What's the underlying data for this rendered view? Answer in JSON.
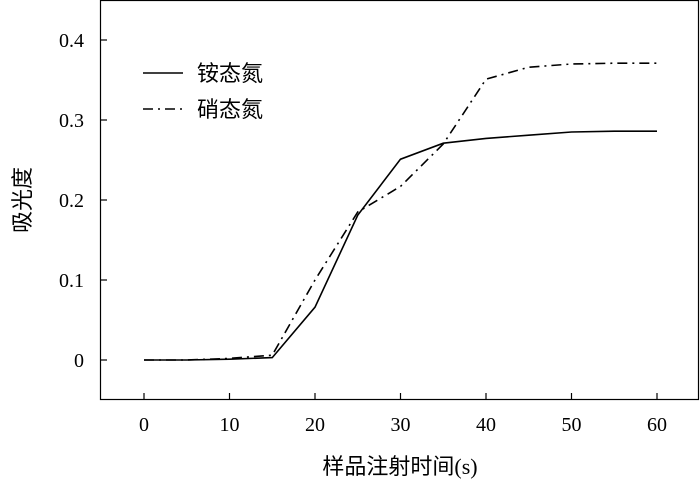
{
  "chart_data": {
    "type": "line",
    "title": "",
    "xlabel": "样品注射时间(s)",
    "ylabel": "吸光度",
    "xlim": [
      -10,
      65
    ],
    "ylim": [
      -0.05,
      0.45
    ],
    "xticks": [
      0,
      10,
      20,
      30,
      40,
      50,
      60
    ],
    "yticks": [
      0,
      0.1,
      0.2,
      0.3,
      0.4
    ],
    "xtick_labels": [
      "0",
      "10",
      "20",
      "30",
      "40",
      "50",
      "60"
    ],
    "ytick_labels": [
      "0",
      "0.1",
      "0.2",
      "0.3",
      "0.4"
    ],
    "grid": false,
    "legend_position": "top-left",
    "x": [
      0,
      5,
      10,
      15,
      20,
      25,
      30,
      35,
      40,
      45,
      50,
      55,
      60
    ],
    "series": [
      {
        "name": "铵态氮",
        "style": "solid",
        "color": "#000000",
        "values": [
          0,
          0,
          0.001,
          0.003,
          0.066,
          0.181,
          0.251,
          0.271,
          0.277,
          0.281,
          0.285,
          0.286,
          0.286
        ]
      },
      {
        "name": "硝态氮",
        "style": "dashdot",
        "color": "#000000",
        "values": [
          0,
          0,
          0.002,
          0.006,
          0.1,
          0.185,
          0.217,
          0.27,
          0.351,
          0.366,
          0.37,
          0.371,
          0.371
        ]
      }
    ]
  }
}
